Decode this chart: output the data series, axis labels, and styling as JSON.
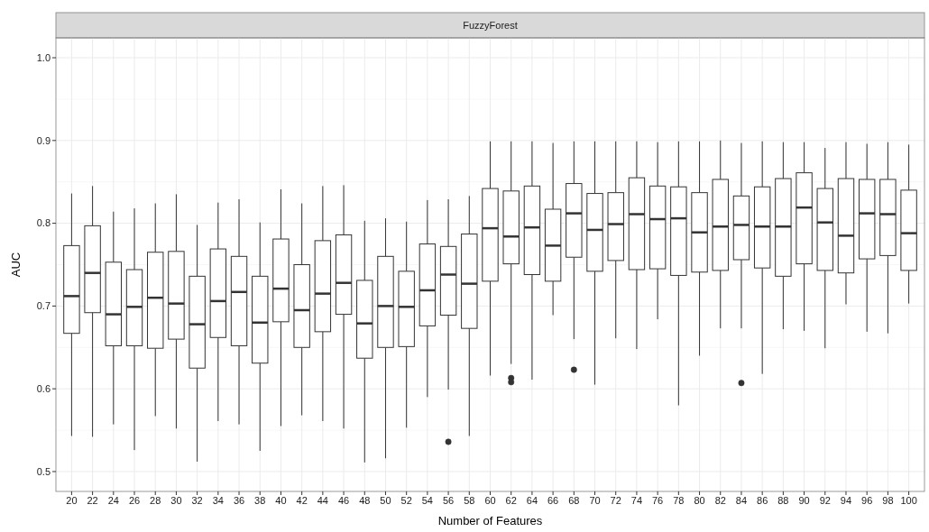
{
  "chart_data": {
    "type": "box",
    "title": "FuzzyForest",
    "xlabel": "Number of Features",
    "ylabel": "AUC",
    "categories": [
      "20",
      "22",
      "24",
      "26",
      "28",
      "30",
      "32",
      "34",
      "36",
      "38",
      "40",
      "42",
      "44",
      "46",
      "48",
      "50",
      "52",
      "54",
      "56",
      "58",
      "60",
      "62",
      "64",
      "66",
      "68",
      "70",
      "72",
      "74",
      "76",
      "78",
      "80",
      "82",
      "84",
      "86",
      "88",
      "90",
      "92",
      "94",
      "96",
      "98",
      "100"
    ],
    "ylim": [
      0.476,
      1.024
    ],
    "yticks": [
      0.5,
      0.6,
      0.7,
      0.8,
      0.9,
      {
        "value": 1,
        "label": "1.0"
      }
    ],
    "grid": true,
    "color": "#333333",
    "boxes": [
      {
        "low": 0.543,
        "q1": 0.667,
        "median": 0.712,
        "q3": 0.773,
        "high": 0.836
      },
      {
        "low": 0.542,
        "q1": 0.692,
        "median": 0.74,
        "q3": 0.797,
        "high": 0.845
      },
      {
        "low": 0.557,
        "q1": 0.652,
        "median": 0.69,
        "q3": 0.753,
        "high": 0.814
      },
      {
        "low": 0.526,
        "q1": 0.652,
        "median": 0.699,
        "q3": 0.744,
        "high": 0.818
      },
      {
        "low": 0.567,
        "q1": 0.649,
        "median": 0.71,
        "q3": 0.765,
        "high": 0.824
      },
      {
        "low": 0.552,
        "q1": 0.66,
        "median": 0.703,
        "q3": 0.766,
        "high": 0.835
      },
      {
        "low": 0.512,
        "q1": 0.625,
        "median": 0.678,
        "q3": 0.736,
        "high": 0.798
      },
      {
        "low": 0.561,
        "q1": 0.662,
        "median": 0.706,
        "q3": 0.769,
        "high": 0.825
      },
      {
        "low": 0.557,
        "q1": 0.652,
        "median": 0.717,
        "q3": 0.76,
        "high": 0.829
      },
      {
        "low": 0.525,
        "q1": 0.631,
        "median": 0.68,
        "q3": 0.736,
        "high": 0.801
      },
      {
        "low": 0.555,
        "q1": 0.681,
        "median": 0.721,
        "q3": 0.781,
        "high": 0.841
      },
      {
        "low": 0.568,
        "q1": 0.65,
        "median": 0.695,
        "q3": 0.75,
        "high": 0.824
      },
      {
        "low": 0.561,
        "q1": 0.669,
        "median": 0.715,
        "q3": 0.779,
        "high": 0.845
      },
      {
        "low": 0.552,
        "q1": 0.69,
        "median": 0.728,
        "q3": 0.786,
        "high": 0.846
      },
      {
        "low": 0.511,
        "q1": 0.637,
        "median": 0.679,
        "q3": 0.731,
        "high": 0.803
      },
      {
        "low": 0.516,
        "q1": 0.65,
        "median": 0.7,
        "q3": 0.76,
        "high": 0.806
      },
      {
        "low": 0.553,
        "q1": 0.651,
        "median": 0.699,
        "q3": 0.742,
        "high": 0.802
      },
      {
        "low": 0.59,
        "q1": 0.676,
        "median": 0.719,
        "q3": 0.775,
        "high": 0.828
      },
      {
        "low": 0.599,
        "q1": 0.689,
        "median": 0.738,
        "q3": 0.772,
        "high": 0.829,
        "outliers": [
          0.536
        ]
      },
      {
        "low": 0.543,
        "q1": 0.673,
        "median": 0.727,
        "q3": 0.787,
        "high": 0.833
      },
      {
        "low": 0.616,
        "q1": 0.73,
        "median": 0.794,
        "q3": 0.842,
        "high": 0.899
      },
      {
        "low": 0.63,
        "q1": 0.751,
        "median": 0.784,
        "q3": 0.839,
        "high": 0.899,
        "outliers": [
          0.613,
          0.608
        ]
      },
      {
        "low": 0.611,
        "q1": 0.738,
        "median": 0.795,
        "q3": 0.845,
        "high": 0.899
      },
      {
        "low": 0.689,
        "q1": 0.73,
        "median": 0.773,
        "q3": 0.817,
        "high": 0.897
      },
      {
        "low": 0.66,
        "q1": 0.759,
        "median": 0.812,
        "q3": 0.848,
        "high": 0.899,
        "outliers": [
          0.623
        ]
      },
      {
        "low": 0.605,
        "q1": 0.742,
        "median": 0.792,
        "q3": 0.836,
        "high": 0.899
      },
      {
        "low": 0.661,
        "q1": 0.755,
        "median": 0.799,
        "q3": 0.837,
        "high": 0.899
      },
      {
        "low": 0.648,
        "q1": 0.744,
        "median": 0.811,
        "q3": 0.855,
        "high": 0.899
      },
      {
        "low": 0.684,
        "q1": 0.745,
        "median": 0.805,
        "q3": 0.845,
        "high": 0.898
      },
      {
        "low": 0.58,
        "q1": 0.737,
        "median": 0.806,
        "q3": 0.844,
        "high": 0.899
      },
      {
        "low": 0.64,
        "q1": 0.741,
        "median": 0.789,
        "q3": 0.837,
        "high": 0.899
      },
      {
        "low": 0.673,
        "q1": 0.743,
        "median": 0.796,
        "q3": 0.853,
        "high": 0.9
      },
      {
        "low": 0.673,
        "q1": 0.756,
        "median": 0.798,
        "q3": 0.833,
        "high": 0.897,
        "outliers": [
          0.607
        ]
      },
      {
        "low": 0.618,
        "q1": 0.746,
        "median": 0.796,
        "q3": 0.844,
        "high": 0.899
      },
      {
        "low": 0.672,
        "q1": 0.736,
        "median": 0.796,
        "q3": 0.854,
        "high": 0.898
      },
      {
        "low": 0.67,
        "q1": 0.751,
        "median": 0.819,
        "q3": 0.861,
        "high": 0.898
      },
      {
        "low": 0.649,
        "q1": 0.743,
        "median": 0.801,
        "q3": 0.842,
        "high": 0.891
      },
      {
        "low": 0.702,
        "q1": 0.74,
        "median": 0.785,
        "q3": 0.854,
        "high": 0.898
      },
      {
        "low": 0.669,
        "q1": 0.757,
        "median": 0.812,
        "q3": 0.853,
        "high": 0.896
      },
      {
        "low": 0.667,
        "q1": 0.761,
        "median": 0.811,
        "q3": 0.853,
        "high": 0.898
      },
      {
        "low": 0.703,
        "q1": 0.743,
        "median": 0.788,
        "q3": 0.84,
        "high": 0.895
      }
    ]
  }
}
